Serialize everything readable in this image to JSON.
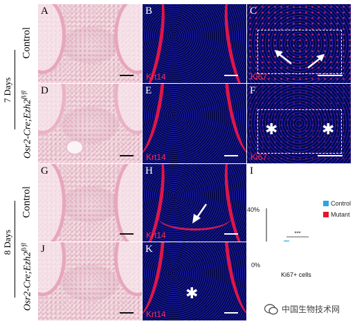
{
  "side_labels": {
    "group1_days": "7 Days",
    "group2_days": "8 Days",
    "control": "Control",
    "mutant_main": "Osr2-Cre;Ezh2",
    "mutant_sup": "fl/fl"
  },
  "panels": {
    "A": {
      "letter": "A",
      "type": "H&E"
    },
    "B": {
      "letter": "B",
      "marker": "Krt14"
    },
    "C": {
      "letter": "C",
      "marker": "Ki67"
    },
    "D": {
      "letter": "D",
      "type": "H&E"
    },
    "E": {
      "letter": "E",
      "marker": "Krt14"
    },
    "F": {
      "letter": "F",
      "marker": "Ki67"
    },
    "G": {
      "letter": "G",
      "type": "H&E"
    },
    "H": {
      "letter": "H",
      "marker": "Krt14"
    },
    "J": {
      "letter": "J",
      "type": "H&E"
    },
    "K": {
      "letter": "K",
      "marker": "Krt14"
    }
  },
  "chart_panel_letter": "I",
  "chart_data": {
    "type": "bar",
    "categories": [
      "Control",
      "Mutant"
    ],
    "values": [
      14,
      2.5
    ],
    "errors": [
      3,
      2
    ],
    "xlabel": "Ki67+ cells",
    "ylim": [
      0,
      40
    ],
    "ytick_labels": [
      "40%",
      "0%"
    ],
    "significance": "***",
    "legend": [
      "Control",
      "Mutant"
    ],
    "colors": {
      "Control": "#2aa7e0",
      "Mutant": "#e0152f"
    }
  },
  "watermark": "中国生物技术网"
}
